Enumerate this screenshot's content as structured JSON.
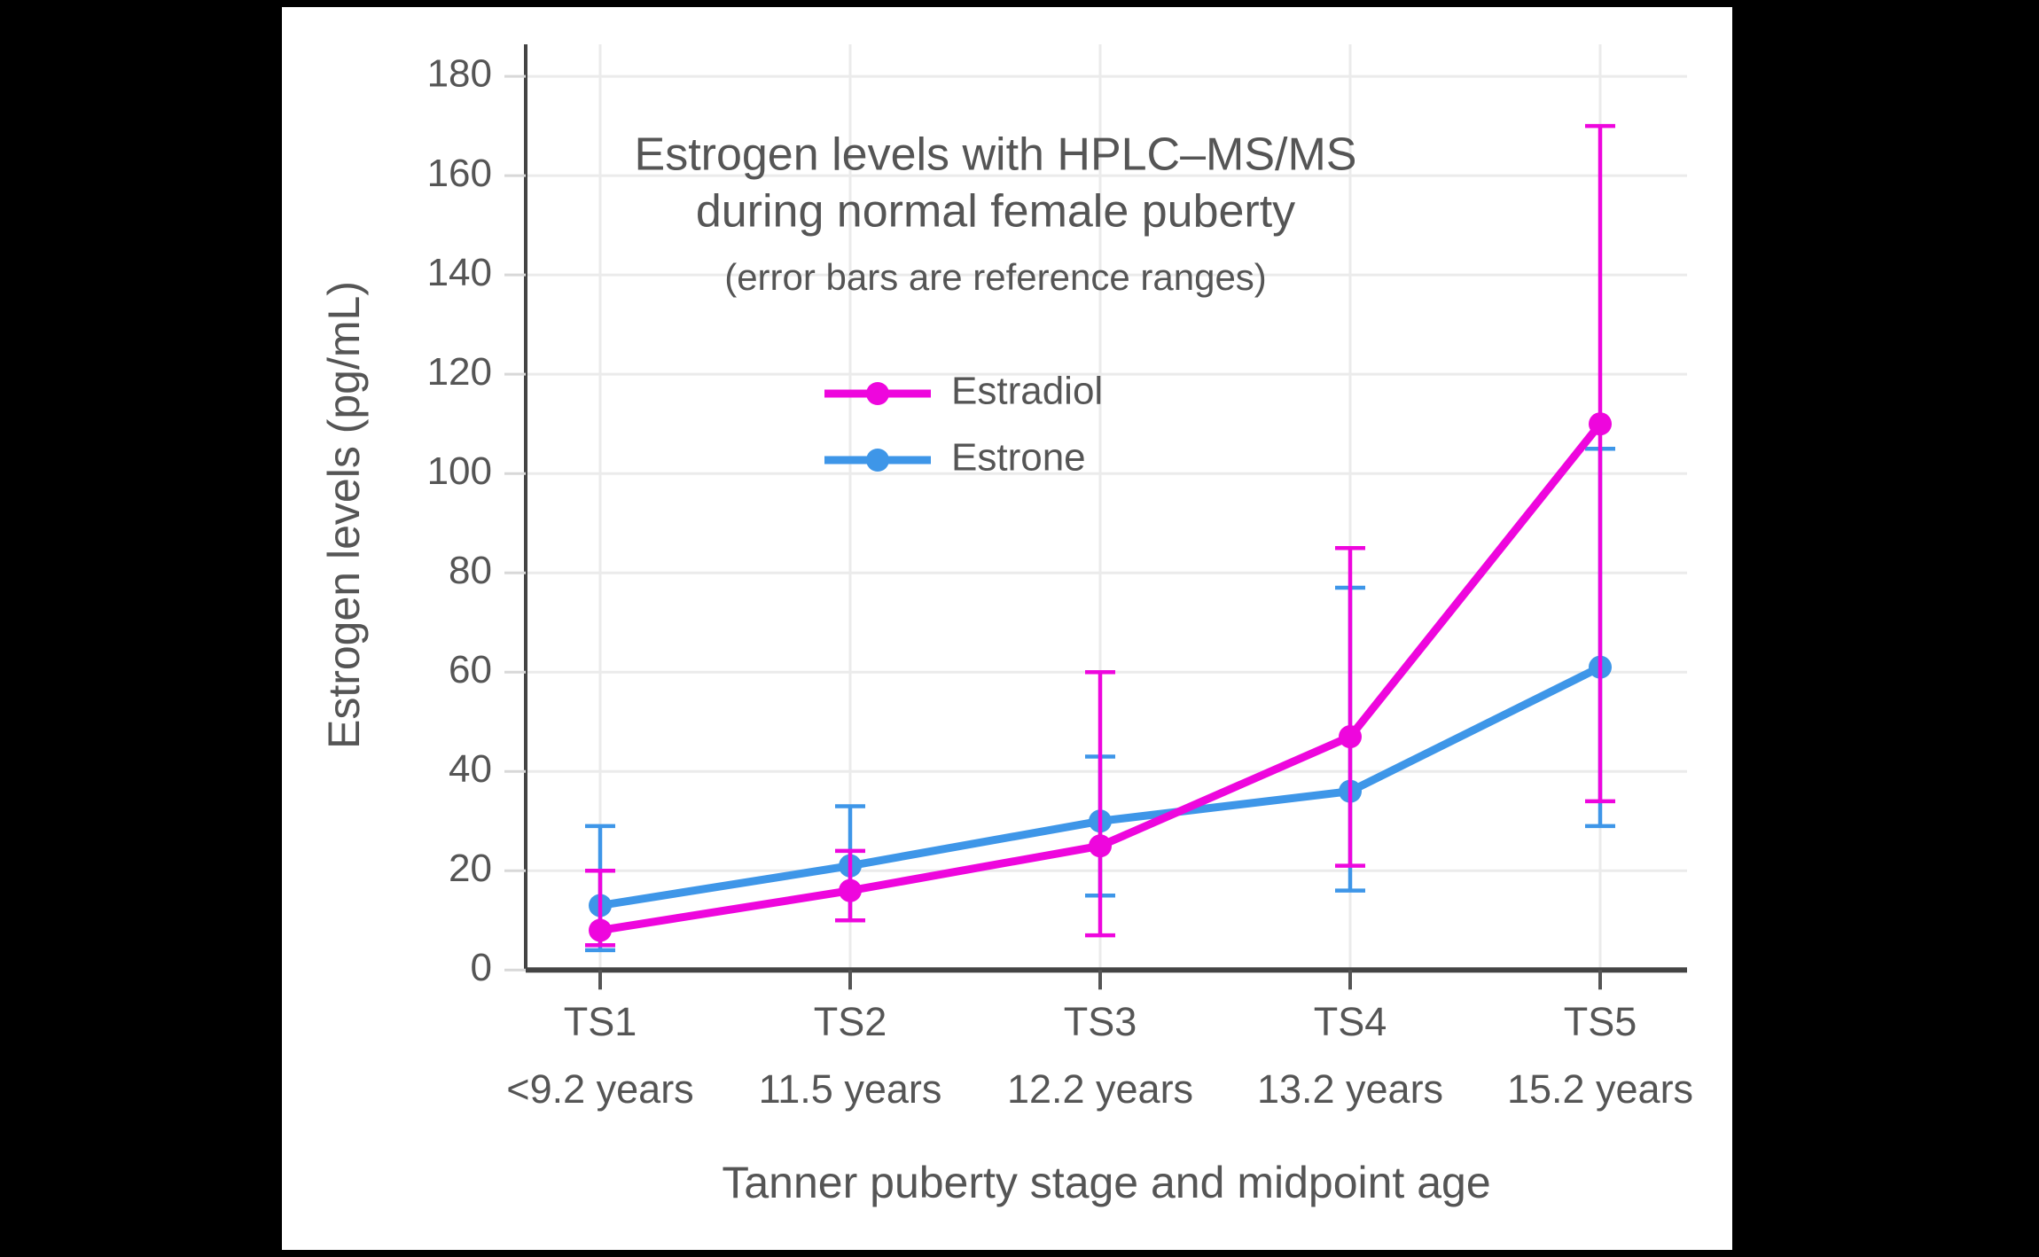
{
  "page": {
    "background_color": "#000000",
    "figure_background_color": "#ffffff"
  },
  "colors": {
    "axis_line": "#444444",
    "text": "#555555",
    "gridline": "#ebebeb",
    "x_tick_mark": "#555555",
    "y_tick_mark": "#d8d8d8"
  },
  "chart_data": {
    "type": "line",
    "title": [
      "Estrogen levels with HPLC–MS/MS",
      "during normal female puberty"
    ],
    "subtitle": "(error bars are reference ranges)",
    "xlabel": "Tanner puberty stage and midpoint age",
    "ylabel": "Estrogen levels (pg/mL)",
    "categories": [
      {
        "stage": "TS1",
        "age": "<9.2 years"
      },
      {
        "stage": "TS2",
        "age": "11.5 years"
      },
      {
        "stage": "TS3",
        "age": "12.2 years"
      },
      {
        "stage": "TS4",
        "age": "13.2 years"
      },
      {
        "stage": "TS5",
        "age": "15.2 years"
      }
    ],
    "y_ticks": [
      0,
      20,
      40,
      60,
      80,
      100,
      120,
      140,
      160,
      180
    ],
    "ylim": [
      0,
      186
    ],
    "grid": true,
    "legend_position": "inside-upper-center",
    "series": [
      {
        "name": "Estradiol",
        "color": "#ee06dd",
        "values": [
          8,
          16,
          25,
          47,
          110
        ],
        "error_low": [
          5,
          10,
          7,
          21,
          34
        ],
        "error_high": [
          20,
          24,
          60,
          85,
          170
        ]
      },
      {
        "name": "Estrone",
        "color": "#3e96e8",
        "values": [
          13,
          21,
          30,
          36,
          61
        ],
        "error_low": [
          4,
          10,
          15,
          16,
          29
        ],
        "error_high": [
          29,
          33,
          43,
          77,
          105
        ]
      }
    ]
  }
}
